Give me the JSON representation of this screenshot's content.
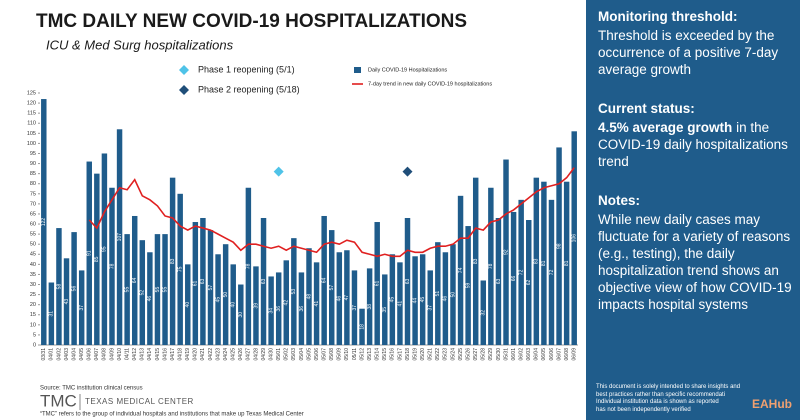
{
  "chart_data": {
    "type": "bar",
    "title": "TMC DAILY NEW COVID-19 HOSPITALIZATIONS",
    "subtitle": "ICU & Med Surg hospitalizations",
    "categories": [
      "03/31",
      "04/01",
      "04/02",
      "04/03",
      "04/04",
      "04/05",
      "04/06",
      "04/07",
      "04/08",
      "04/09",
      "04/10",
      "04/11",
      "04/12",
      "04/13",
      "04/14",
      "04/15",
      "04/16",
      "04/17",
      "04/18",
      "04/19",
      "04/20",
      "04/21",
      "04/22",
      "04/23",
      "04/24",
      "04/25",
      "04/26",
      "04/27",
      "04/28",
      "04/29",
      "04/30",
      "05/01",
      "05/02",
      "05/03",
      "05/04",
      "05/05",
      "05/06",
      "05/07",
      "05/08",
      "05/09",
      "05/10",
      "05/11",
      "05/12",
      "05/13",
      "05/14",
      "05/15",
      "05/16",
      "05/17",
      "05/18",
      "05/19",
      "05/20",
      "05/21",
      "05/22",
      "05/23",
      "05/24",
      "05/25",
      "05/26",
      "05/27",
      "05/28",
      "05/29",
      "05/30",
      "05/31",
      "06/01",
      "06/02",
      "06/03",
      "06/04",
      "06/05",
      "06/06",
      "06/07",
      "06/08",
      "06/09"
    ],
    "series": [
      {
        "name": "Daily COVID-19 Hospitalizations",
        "type": "bar",
        "color": "#1f5c8b",
        "values": [
          122,
          31,
          58,
          43,
          56,
          37,
          91,
          85,
          95,
          78,
          107,
          55,
          64,
          52,
          46,
          55,
          55,
          83,
          75,
          40,
          61,
          63,
          57,
          45,
          50,
          40,
          30,
          78,
          39,
          63,
          34,
          36,
          42,
          53,
          36,
          48,
          41,
          64,
          57,
          46,
          47,
          37,
          18,
          38,
          61,
          35,
          45,
          41,
          63,
          44,
          45,
          37,
          51,
          46,
          50,
          74,
          59,
          83,
          32,
          78,
          63,
          92,
          66,
          72,
          62,
          83,
          81,
          72,
          98,
          81,
          106
        ]
      },
      {
        "name": "7-day trend in new daily COVID-19 hospitalizations",
        "type": "line",
        "color": "#e02020",
        "values": [
          null,
          null,
          null,
          null,
          null,
          null,
          62,
          58,
          66,
          72,
          78,
          77,
          82,
          74,
          72,
          69,
          64,
          63,
          59,
          57,
          59,
          58,
          57,
          55,
          53,
          51,
          47,
          50,
          50,
          49,
          48,
          49,
          47,
          49,
          48,
          47,
          46,
          50,
          51,
          50,
          52,
          51,
          46,
          45,
          44,
          45,
          44,
          44,
          47,
          46,
          46,
          48,
          49,
          49,
          50,
          53,
          53,
          58,
          57,
          61,
          62,
          65,
          67,
          70,
          73,
          76,
          78,
          79,
          80,
          83,
          88
        ]
      }
    ],
    "annotations": [
      {
        "label": "Phase 1 reopening (5/1)",
        "x": "05/01",
        "y": 86,
        "color": "#4fc3e8"
      },
      {
        "label": "Phase 2 reopening (5/18)",
        "x": "05/18",
        "y": 86,
        "color": "#1f4e79"
      }
    ],
    "ylim": [
      0,
      125
    ],
    "yticks": [
      0,
      5,
      10,
      15,
      20,
      25,
      30,
      35,
      40,
      45,
      50,
      55,
      60,
      65,
      70,
      75,
      80,
      85,
      90,
      95,
      100,
      105,
      110,
      115,
      120,
      125
    ],
    "grid": false
  },
  "panel": {
    "threshold_heading": "Monitoring threshold:",
    "threshold_text": "Threshold is exceeded by the occurrence of a positive 7-day average growth",
    "status_heading": "Current status:",
    "status_bold": "4.5% average growth",
    "status_text": " in the COVID-19 daily hospitalizations trend",
    "notes_heading": "Notes:",
    "notes_text": "While new daily cases may fluctuate for a variety of reasons (e.g., testing), the daily hospitalization trend shows an objective view of how COVID-19 impacts hospital systems",
    "disclaimer": [
      "This document is solely intended to share insights and",
      "best practices rather than specific recommendati",
      "Individual institution data is shown as reported",
      "has not been independently verified"
    ],
    "watermark": "EAHub"
  },
  "footer": {
    "source": "Source: TMC institution clinical census",
    "logo_mark": "TMC",
    "logo_text": "TEXAS MEDICAL CENTER",
    "note": "“TMC” refers to the group of individual hospitals and institutions that make up Texas Medical Center"
  }
}
